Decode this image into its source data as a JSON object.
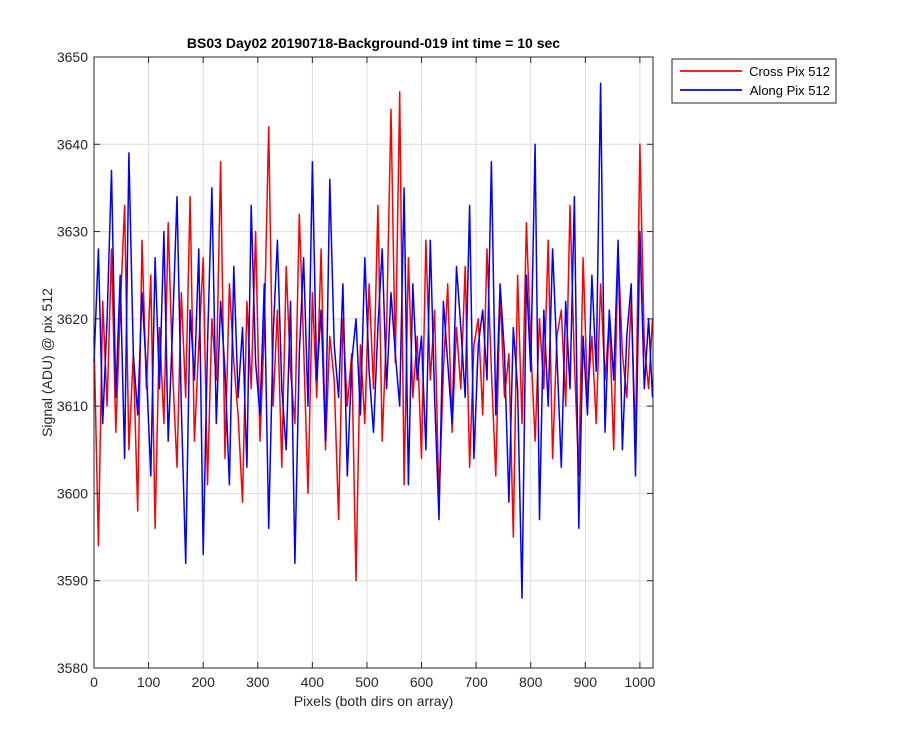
{
  "chart_data": {
    "type": "line",
    "title": "BS03 Day02 20190718-Background-019 int time = 10 sec",
    "xlabel": "Pixels (both dirs on array)",
    "ylabel": "Signal (ADU) @ pix 512",
    "xlim": [
      0,
      1024
    ],
    "ylim": [
      3580,
      3650
    ],
    "xticks": [
      0,
      100,
      200,
      300,
      400,
      500,
      600,
      700,
      800,
      900,
      1000
    ],
    "yticks": [
      3580,
      3590,
      3600,
      3610,
      3620,
      3630,
      3640,
      3650
    ],
    "grid": true,
    "legend_position": "outside-top-right",
    "series": [
      {
        "name": "Cross Pix 512",
        "color": "#ff0000",
        "x": [
          0,
          8,
          16,
          24,
          32,
          40,
          48,
          56,
          64,
          72,
          80,
          88,
          96,
          104,
          112,
          120,
          128,
          136,
          144,
          152,
          160,
          168,
          176,
          184,
          192,
          200,
          208,
          216,
          224,
          232,
          240,
          248,
          256,
          264,
          272,
          280,
          288,
          296,
          304,
          312,
          320,
          328,
          336,
          344,
          352,
          360,
          368,
          376,
          384,
          392,
          400,
          408,
          416,
          424,
          432,
          440,
          448,
          456,
          464,
          472,
          480,
          488,
          496,
          504,
          512,
          520,
          528,
          536,
          544,
          552,
          560,
          568,
          576,
          584,
          592,
          600,
          608,
          616,
          624,
          632,
          640,
          648,
          656,
          664,
          672,
          680,
          688,
          696,
          704,
          712,
          720,
          728,
          736,
          744,
          752,
          760,
          768,
          776,
          784,
          792,
          800,
          808,
          816,
          824,
          832,
          840,
          848,
          856,
          864,
          872,
          880,
          888,
          896,
          904,
          912,
          920,
          928,
          936,
          944,
          952,
          960,
          968,
          976,
          984,
          992,
          1000,
          1008,
          1016,
          1023
        ],
        "y": [
          3618,
          3594,
          3622,
          3610,
          3628,
          3607,
          3621,
          3633,
          3605,
          3616,
          3598,
          3629,
          3612,
          3625,
          3596,
          3619,
          3608,
          3631,
          3614,
          3603,
          3623,
          3611,
          3634,
          3606,
          3617,
          3627,
          3601,
          3620,
          3613,
          3638,
          3604,
          3624,
          3615,
          3609,
          3599,
          3622,
          3612,
          3630,
          3606,
          3619,
          3642,
          3610,
          3621,
          3603,
          3626,
          3614,
          3608,
          3632,
          3617,
          3600,
          3623,
          3611,
          3628,
          3605,
          3618,
          3613,
          3597,
          3620,
          3610,
          3616,
          3590,
          3617,
          3608,
          3624,
          3612,
          3633,
          3606,
          3619,
          3644,
          3615,
          3646,
          3601,
          3627,
          3611,
          3618,
          3604,
          3629,
          3613,
          3621,
          3599,
          3614,
          3624,
          3607,
          3619,
          3612,
          3626,
          3603,
          3617,
          3620,
          3609,
          3628,
          3614,
          3602,
          3623,
          3611,
          3616,
          3595,
          3625,
          3608,
          3631,
          3617,
          3606,
          3620,
          3612,
          3629,
          3604,
          3618,
          3621,
          3610,
          3633,
          3615,
          3602,
          3627,
          3611,
          3618,
          3608,
          3624,
          3613,
          3620,
          3605,
          3628,
          3616,
          3611,
          3622,
          3606,
          3640,
          3617,
          3612,
          3620
        ]
      },
      {
        "name": "Along Pix 512",
        "color": "#0000ff",
        "x": [
          0,
          8,
          16,
          24,
          32,
          40,
          48,
          56,
          64,
          72,
          80,
          88,
          96,
          104,
          112,
          120,
          128,
          136,
          144,
          152,
          160,
          168,
          176,
          184,
          192,
          200,
          208,
          216,
          224,
          232,
          240,
          248,
          256,
          264,
          272,
          280,
          288,
          296,
          304,
          312,
          320,
          328,
          336,
          344,
          352,
          360,
          368,
          376,
          384,
          392,
          400,
          408,
          416,
          424,
          432,
          440,
          448,
          456,
          464,
          472,
          480,
          488,
          496,
          504,
          512,
          520,
          528,
          536,
          544,
          552,
          560,
          568,
          576,
          584,
          592,
          600,
          608,
          616,
          624,
          632,
          640,
          648,
          656,
          664,
          672,
          680,
          688,
          696,
          704,
          712,
          720,
          728,
          736,
          744,
          752,
          760,
          768,
          776,
          784,
          792,
          800,
          808,
          816,
          824,
          832,
          840,
          848,
          856,
          864,
          872,
          880,
          888,
          896,
          904,
          912,
          920,
          928,
          936,
          944,
          952,
          960,
          968,
          976,
          984,
          992,
          1000,
          1008,
          1016,
          1023
        ],
        "y": [
          3615,
          3628,
          3608,
          3620,
          3637,
          3611,
          3625,
          3604,
          3639,
          3616,
          3609,
          3623,
          3614,
          3602,
          3627,
          3612,
          3630,
          3606,
          3619,
          3634,
          3610,
          3592,
          3621,
          3613,
          3628,
          3593,
          3617,
          3635,
          3608,
          3622,
          3614,
          3601,
          3626,
          3611,
          3619,
          3603,
          3633,
          3615,
          3609,
          3624,
          3596,
          3618,
          3629,
          3612,
          3605,
          3622,
          3592,
          3616,
          3627,
          3610,
          3638,
          3613,
          3621,
          3606,
          3636,
          3617,
          3611,
          3624,
          3602,
          3615,
          3620,
          3609,
          3627,
          3614,
          3607,
          3619,
          3628,
          3612,
          3623,
          3616,
          3610,
          3635,
          3601,
          3624,
          3613,
          3618,
          3605,
          3629,
          3611,
          3597,
          3622,
          3615,
          3608,
          3626,
          3619,
          3611,
          3633,
          3604,
          3617,
          3621,
          3613,
          3638,
          3609,
          3624,
          3616,
          3599,
          3619,
          3612,
          3588,
          3625,
          3614,
          3640,
          3597,
          3621,
          3610,
          3628,
          3616,
          3603,
          3622,
          3612,
          3634,
          3596,
          3618,
          3609,
          3625,
          3614,
          3647,
          3607,
          3621,
          3613,
          3629,
          3605,
          3618,
          3624,
          3602,
          3630,
          3612,
          3620,
          3611
        ]
      }
    ]
  }
}
